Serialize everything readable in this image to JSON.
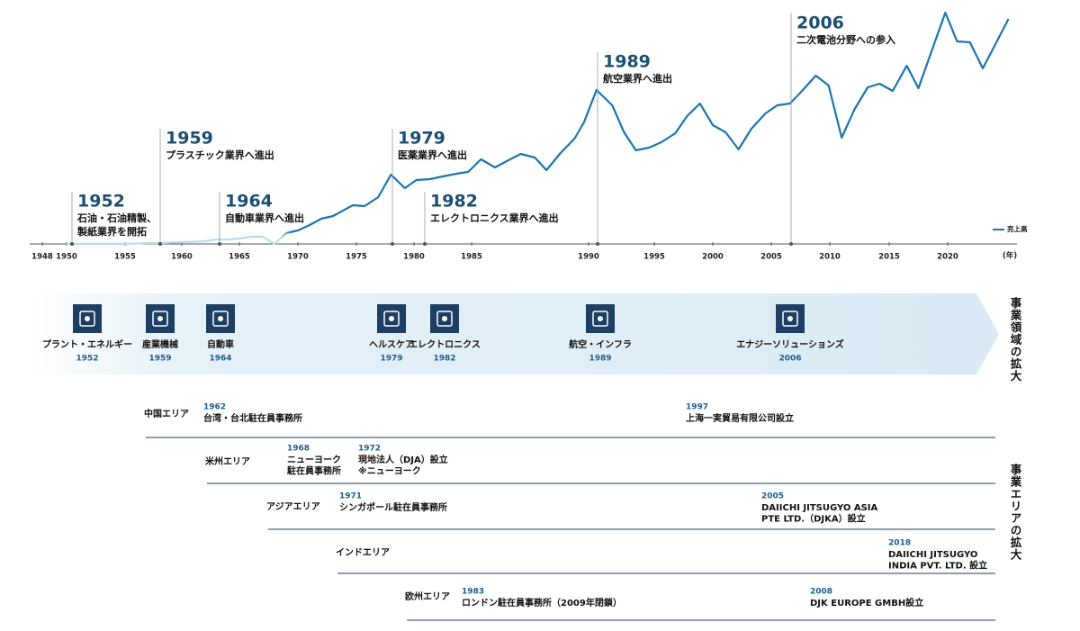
{
  "chart_data": {
    "type": "line",
    "series": [
      {
        "name": "売上高",
        "color": "#1b75b0",
        "x": [
          1950,
          1951,
          1952,
          1953,
          1954,
          1955,
          1956,
          1957,
          1958,
          1959,
          1960,
          1961,
          1962,
          1963,
          1964,
          1965,
          1966,
          1967,
          1968,
          1969,
          1970,
          1971,
          1972,
          1973,
          1974.7,
          1975.7,
          1976.9,
          1978.0,
          1979.2,
          1980.2,
          1981.4,
          1982.5,
          1983.7,
          1984.7,
          1985.4,
          1986.0,
          1986.5,
          1987.1,
          1987.7,
          1988.2,
          1988.8,
          1989.4,
          1989.8,
          1990.6,
          1991.8,
          1992.7,
          1993.6,
          1994.6,
          1995.6,
          1996.8,
          1997.8,
          1998.9,
          2000.0,
          2001.1,
          2002.2,
          2003.3,
          2004.5,
          2005.5,
          2006.6,
          2007.7,
          2008.8,
          2009.9,
          2011.0,
          2012.1,
          2013.2,
          2014.2,
          2015.3,
          2016.5,
          2017.5,
          2018.7,
          2019.8,
          2020.8,
          2021.9,
          2023.0,
          2025.2
        ],
        "values": [
          0,
          0,
          0,
          0,
          0,
          0,
          0.5,
          1,
          1,
          1.5,
          2,
          2.5,
          3,
          5,
          5,
          6,
          8,
          8,
          0,
          12,
          15,
          21,
          28,
          31,
          43,
          42,
          52,
          77,
          62,
          71,
          72,
          75,
          78,
          80,
          94,
          85,
          92,
          100,
          96,
          82,
          101,
          117,
          135,
          171,
          154,
          124,
          104,
          107,
          113,
          123,
          142,
          156,
          132,
          124,
          105,
          128,
          145,
          154,
          156,
          171,
          187,
          176,
          118,
          150,
          174,
          178,
          170,
          198,
          173,
          217,
          257,
          225,
          224,
          195,
          250
        ]
      }
    ],
    "xticks": [
      1948,
      1950,
      1955,
      1960,
      1965,
      1970,
      1975,
      1980,
      1985,
      1990,
      1995,
      2000,
      2005,
      2010,
      2015,
      2020
    ],
    "x_unit": "(年)",
    "annotations": [
      {
        "year": "1952",
        "text": [
          "石油・石油精製、",
          "製紙業界を開拓"
        ]
      },
      {
        "year": "1959",
        "text": [
          "プラスチック業界へ進出"
        ]
      },
      {
        "year": "1964",
        "text": [
          "自動車業界へ進出"
        ]
      },
      {
        "year": "1979",
        "text": [
          "医薬業界へ進出"
        ]
      },
      {
        "year": "1982",
        "text": [
          "エレクトロニクス業界へ進出"
        ]
      },
      {
        "year": "1989",
        "text": [
          "航空業界へ進出"
        ]
      },
      {
        "year": "2006",
        "text": [
          "二次電池分野への参入"
        ]
      }
    ]
  },
  "business_domains": {
    "title": "事業領域の拡大",
    "items": [
      {
        "label": "プラント・エネルギー",
        "year": "1952"
      },
      {
        "label": "産業機械",
        "year": "1959"
      },
      {
        "label": "自動車",
        "year": "1964"
      },
      {
        "label": "ヘルスケア",
        "year": "1979"
      },
      {
        "label": "エレクトロニクス",
        "year": "1982"
      },
      {
        "label": "航空・インフラ",
        "year": "1989"
      },
      {
        "label": "エナジーソリューションズ",
        "year": "2006"
      }
    ]
  },
  "business_areas": {
    "title": "事業エリアの拡大",
    "rows": [
      {
        "area": "中国エリア",
        "events": [
          {
            "year": "1962",
            "lines": [
              "台湾・台北駐在員事務所"
            ]
          },
          {
            "year": "1997",
            "lines": [
              "上海一実貿易有限公司設立"
            ]
          }
        ]
      },
      {
        "area": "米州エリア",
        "events": [
          {
            "year": "1968",
            "lines": [
              "ニューヨーク",
              "駐在員事務所"
            ]
          },
          {
            "year": "1972",
            "lines": [
              "現地法人（DJA）設立",
              "※ニューヨーク"
            ]
          }
        ]
      },
      {
        "area": "アジアエリア",
        "events": [
          {
            "year": "1971",
            "lines": [
              "シンガポール駐在員事務所"
            ]
          },
          {
            "year": "2005",
            "lines": [
              "DAIICHI JITSUGYO ASIA",
              "PTE LTD.（DJKA）設立"
            ]
          }
        ]
      },
      {
        "area": "インドエリア",
        "events": [
          {
            "year": "2018",
            "lines": [
              "DAIICHI JITSUGYO",
              "INDIA PVT. LTD. 設立"
            ]
          }
        ]
      },
      {
        "area": "欧州エリア",
        "events": [
          {
            "year": "1983",
            "lines": [
              "ロンドン駐在員事務所（2009年閉鎖）"
            ]
          },
          {
            "year": "2008",
            "lines": [
              "DJK EUROPE GMBH設立"
            ]
          }
        ]
      }
    ]
  }
}
